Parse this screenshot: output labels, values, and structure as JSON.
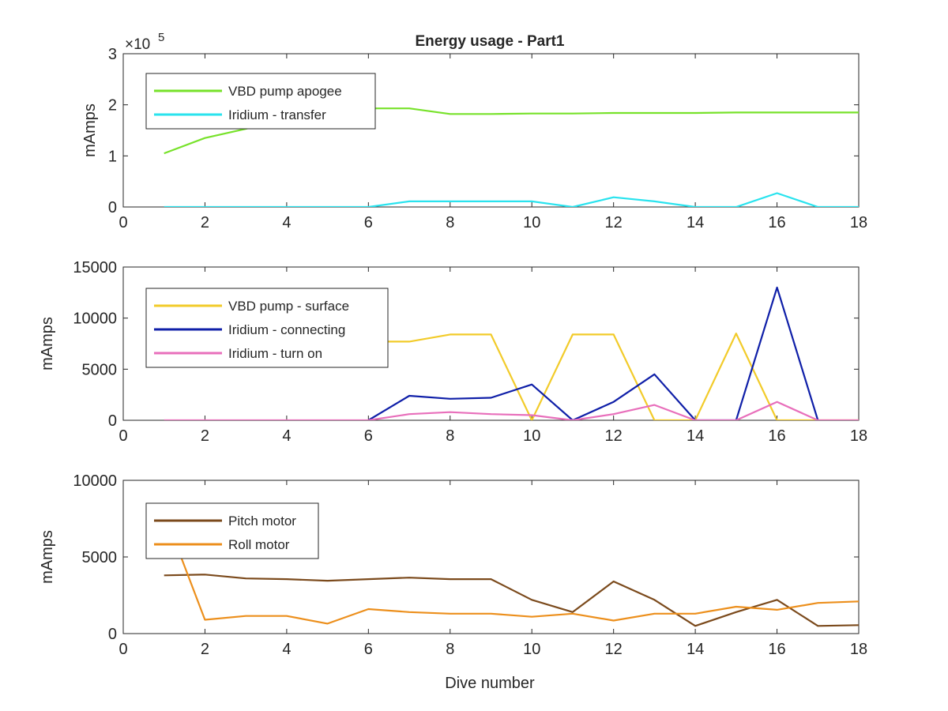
{
  "figure": {
    "title": "Energy usage - Part1",
    "xlabel": "Dive number"
  },
  "chart_data": [
    {
      "type": "line",
      "title": "Energy usage - Part1",
      "xlabel": "",
      "ylabel": "mAmps",
      "xlim": [
        0,
        18
      ],
      "ylim": [
        0,
        3
      ],
      "xticks": [
        "0",
        "2",
        "4",
        "6",
        "8",
        "10",
        "12",
        "14",
        "16",
        "18"
      ],
      "yticks": [
        "0",
        "1",
        "2",
        "3"
      ],
      "exponent_base": "×10",
      "exponent_power": "5",
      "legend_position": "top-left",
      "series": [
        {
          "name": "VBD pump apogee",
          "color": "#77e22a",
          "x": [
            1,
            2,
            3,
            4,
            5,
            6,
            7,
            8,
            9,
            10,
            11,
            12,
            13,
            14,
            15,
            16,
            17,
            18
          ],
          "y": [
            1.05,
            1.35,
            1.53,
            1.75,
            1.88,
            1.93,
            1.93,
            1.82,
            1.82,
            1.83,
            1.83,
            1.84,
            1.84,
            1.84,
            1.85,
            1.85,
            1.85,
            1.85
          ]
        },
        {
          "name": "Iridium - transfer",
          "color": "#29e3ee",
          "x": [
            1,
            2,
            3,
            4,
            5,
            6,
            7,
            8,
            9,
            10,
            11,
            12,
            13,
            14,
            15,
            16,
            17,
            18
          ],
          "y": [
            0,
            0,
            0,
            0,
            0,
            0,
            0.11,
            0.11,
            0.11,
            0.11,
            0,
            0.19,
            0.11,
            0,
            0,
            0.27,
            0,
            0
          ]
        }
      ]
    },
    {
      "type": "line",
      "title": "",
      "xlabel": "",
      "ylabel": "mAmps",
      "xlim": [
        0,
        18
      ],
      "ylim": [
        0,
        15000
      ],
      "xticks": [
        "0",
        "2",
        "4",
        "6",
        "8",
        "10",
        "12",
        "14",
        "16",
        "18"
      ],
      "yticks": [
        "0",
        "5000",
        "10000",
        "15000"
      ],
      "legend_position": "top-left",
      "series": [
        {
          "name": "VBD pump - surface",
          "color": "#f2cb2a",
          "x": [
            6,
            7,
            8,
            9,
            10,
            11,
            12,
            13,
            14,
            15,
            16,
            17,
            18
          ],
          "y": [
            7700,
            7700,
            8400,
            8400,
            0,
            8400,
            8400,
            0,
            0,
            8500,
            0,
            0,
            0
          ]
        },
        {
          "name": "Iridium - connecting",
          "color": "#0f1fa8",
          "x": [
            6,
            7,
            8,
            9,
            10,
            11,
            12,
            13,
            14,
            15,
            16,
            17
          ],
          "y": [
            0,
            2400,
            2100,
            2200,
            3500,
            0,
            1800,
            4500,
            0,
            0,
            13000,
            0
          ]
        },
        {
          "name": "Iridium - turn on",
          "color": "#e86fbb",
          "x": [
            1,
            2,
            3,
            4,
            5,
            6,
            7,
            8,
            9,
            10,
            11,
            12,
            13,
            14,
            15,
            16,
            17,
            18
          ],
          "y": [
            0,
            0,
            0,
            0,
            0,
            0,
            600,
            800,
            600,
            500,
            0,
            600,
            1500,
            0,
            0,
            1800,
            0,
            0
          ]
        }
      ]
    },
    {
      "type": "line",
      "title": "",
      "xlabel": "Dive number",
      "ylabel": "mAmps",
      "xlim": [
        0,
        18
      ],
      "ylim": [
        0,
        10000
      ],
      "xticks": [
        "0",
        "2",
        "4",
        "6",
        "8",
        "10",
        "12",
        "14",
        "16",
        "18"
      ],
      "yticks": [
        "0",
        "5000",
        "10000"
      ],
      "legend_position": "top-left",
      "series": [
        {
          "name": "Pitch motor",
          "color": "#7b4a1c",
          "x": [
            1,
            2,
            3,
            4,
            5,
            6,
            7,
            8,
            9,
            10,
            11,
            12,
            13,
            14,
            15,
            16,
            17,
            18
          ],
          "y": [
            3800,
            3850,
            3600,
            3550,
            3450,
            3550,
            3650,
            3550,
            3550,
            2200,
            1400,
            3400,
            2200,
            500,
            1400,
            2200,
            500,
            550
          ]
        },
        {
          "name": "Roll motor",
          "color": "#ec8f1c",
          "x": [
            1.4,
            2,
            3,
            4,
            5,
            6,
            7,
            8,
            9,
            10,
            11,
            12,
            13,
            14,
            15,
            16,
            17,
            18
          ],
          "y": [
            5100,
            900,
            1150,
            1150,
            650,
            1600,
            1400,
            1300,
            1300,
            1100,
            1300,
            850,
            1300,
            1300,
            1750,
            1550,
            2000,
            2100
          ]
        }
      ]
    }
  ]
}
